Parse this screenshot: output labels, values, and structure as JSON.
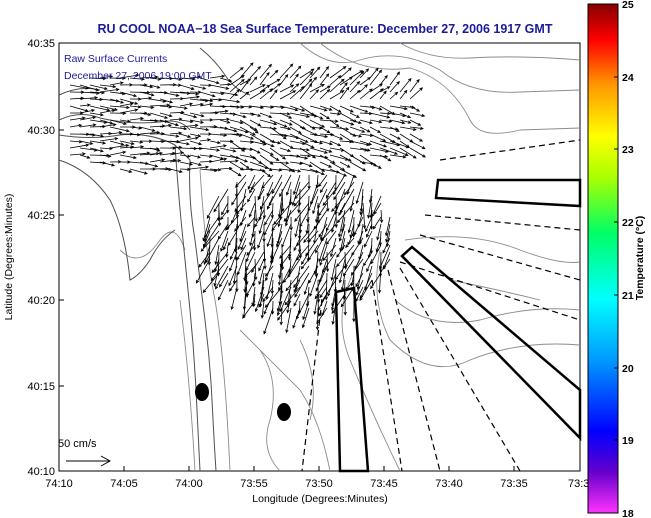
{
  "title": "RU COOL  NOAA−18  Sea Surface Temperature:  December 27, 2006 1917 GMT",
  "legend": {
    "line1": "Raw Surface Currents",
    "line2": "December 27, 2006 19:00 GMT",
    "scale_label": "50 cm/s"
  },
  "axes": {
    "xlabel": "Longitude (Degrees:Minutes)",
    "ylabel": "Latitude (Degrees:Minutes)",
    "xticks": [
      "74:10",
      "74:05",
      "74:00",
      "73:55",
      "73:50",
      "73:45",
      "73:40",
      "73:35",
      "73:3"
    ],
    "yticks": [
      "40:35",
      "40:30",
      "40:25",
      "40:20",
      "40:15",
      "40:10"
    ]
  },
  "colorbar": {
    "label": "Temperature (°C)",
    "ticks": [
      "25",
      "24",
      "23",
      "22",
      "21",
      "20",
      "19",
      "18"
    ],
    "range": [
      18,
      25
    ]
  },
  "colors": {
    "title": "#1b1b9b",
    "arrows": "#000000",
    "coast": "#555555",
    "contours": "#888888"
  }
}
